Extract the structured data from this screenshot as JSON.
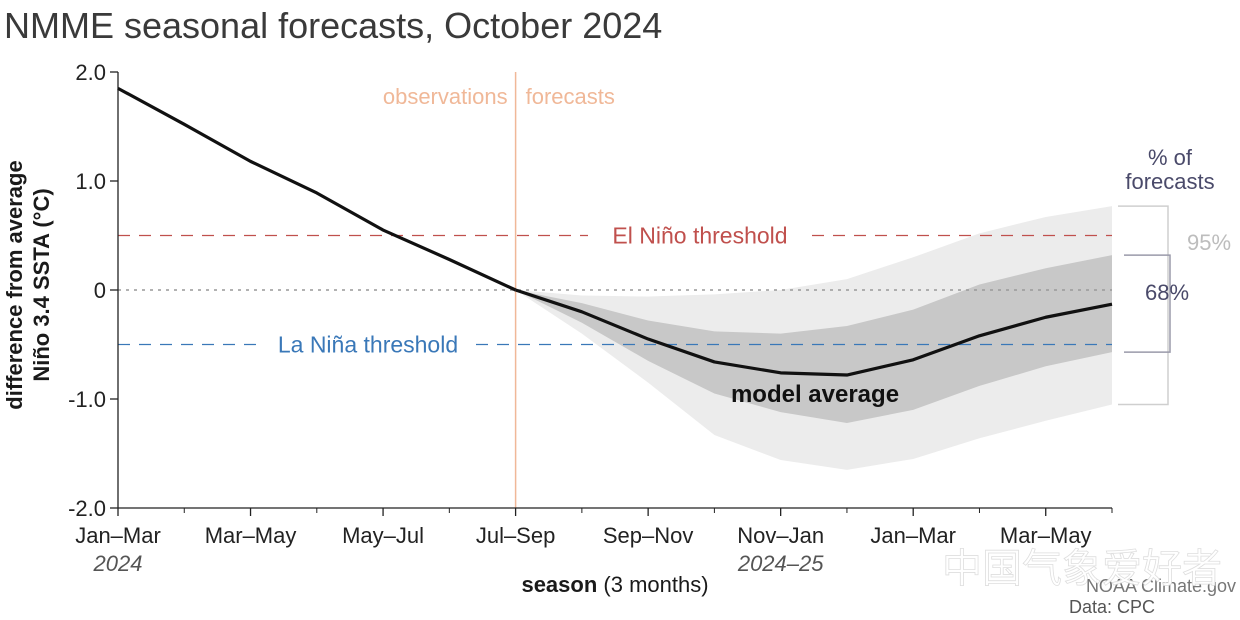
{
  "chart_data": {
    "type": "line",
    "title": "NMME seasonal forecasts, October 2024",
    "ylabel_line1": "difference from average",
    "ylabel_line2": "Niño 3.4 SSTA (°C)",
    "xlabel_bold": "season",
    "xlabel_rest": " (3 months)",
    "ylim": [
      -2.0,
      2.0
    ],
    "yticks": [
      {
        "value": 2.0,
        "label": "2.0"
      },
      {
        "value": 1.0,
        "label": "1.0"
      },
      {
        "value": 0,
        "label": "0"
      },
      {
        "value": -1.0,
        "label": "-1.0"
      },
      {
        "value": -2.0,
        "label": "-2.0"
      }
    ],
    "x_index_range": [
      0,
      15
    ],
    "xticks": [
      {
        "index": 0,
        "label": "Jan–Mar",
        "sublabel": "2024"
      },
      {
        "index": 2,
        "label": "Mar–May",
        "sublabel": ""
      },
      {
        "index": 4,
        "label": "May–Jul",
        "sublabel": ""
      },
      {
        "index": 6,
        "label": "Jul–Sep",
        "sublabel": ""
      },
      {
        "index": 8,
        "label": "Sep–Nov",
        "sublabel": ""
      },
      {
        "index": 10,
        "label": "Nov–Jan",
        "sublabel": "2024–25"
      },
      {
        "index": 12,
        "label": "Jan–Mar",
        "sublabel": ""
      },
      {
        "index": 14,
        "label": "Mar–May",
        "sublabel": ""
      }
    ],
    "observations": {
      "x": [
        0,
        1,
        2,
        3,
        4,
        5,
        6
      ],
      "y": [
        1.85,
        1.52,
        1.18,
        0.89,
        0.55,
        0.28,
        0.0
      ]
    },
    "model_average": {
      "name": "model average",
      "x": [
        6,
        7,
        8,
        9,
        10,
        11,
        12,
        13,
        14,
        15
      ],
      "y": [
        0.0,
        -0.2,
        -0.45,
        -0.66,
        -0.76,
        -0.78,
        -0.64,
        -0.42,
        -0.25,
        -0.13
      ]
    },
    "range_95": {
      "label": "95%",
      "x": [
        6,
        7,
        8,
        9,
        10,
        11,
        12,
        13,
        14,
        15
      ],
      "upper": [
        0.0,
        -0.05,
        -0.06,
        -0.04,
        0.0,
        0.1,
        0.3,
        0.52,
        0.67,
        0.77
      ],
      "lower": [
        0.0,
        -0.4,
        -0.85,
        -1.33,
        -1.56,
        -1.65,
        -1.55,
        -1.36,
        -1.2,
        -1.05
      ]
    },
    "range_68": {
      "label": "68%",
      "x": [
        6,
        7,
        8,
        9,
        10,
        11,
        12,
        13,
        14,
        15
      ],
      "upper": [
        0.0,
        -0.12,
        -0.28,
        -0.38,
        -0.4,
        -0.33,
        -0.18,
        0.05,
        0.2,
        0.32
      ],
      "lower": [
        0.0,
        -0.3,
        -0.65,
        -0.95,
        -1.12,
        -1.22,
        -1.1,
        -0.88,
        -0.7,
        -0.57
      ]
    },
    "thresholds": [
      {
        "name": "El Niño threshold",
        "value": 0.5,
        "color": "#c0504d"
      },
      {
        "name": "La Niña threshold",
        "value": -0.5,
        "color": "#3a78b8"
      }
    ],
    "zero_line": {
      "value": 0,
      "color": "#999999"
    },
    "divider": {
      "index": 6,
      "color": "#f0b898",
      "left_label": "observations",
      "right_label": "forecasts"
    },
    "legend_title_line1": "% of",
    "legend_title_line2": "forecasts",
    "series_color": "#111111",
    "band_95_color": "#ececec",
    "band_68_color": "#c8c8c8"
  },
  "watermark": "中国气象爱好者",
  "credit_line1": "NOAA Climate.gov",
  "credit_line2": "Data: CPC"
}
